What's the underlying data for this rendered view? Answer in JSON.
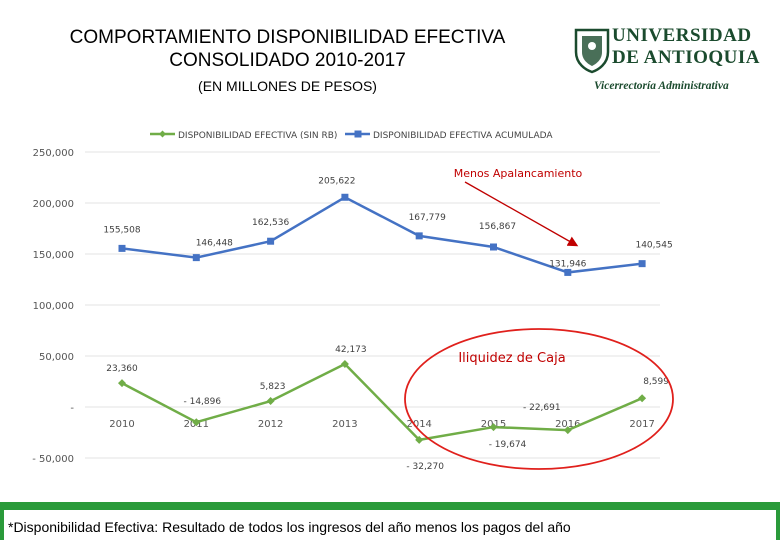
{
  "header": {
    "title": "COMPORTAMIENTO DISPONIBILIDAD EFECTIVA CONSOLIDADO 2010-2017",
    "subtitle": "(EN MILLONES DE PESOS)"
  },
  "logo": {
    "line1": "UNIVERSIDAD",
    "line2": "DE ANTIOQUIA",
    "line3": "Vicerrectoría Administrativa"
  },
  "footer": {
    "note": "*Disponibilidad Efectiva: Resultado de todos los ingresos del año menos los pagos del año"
  },
  "colors": {
    "series1": "#70ad47",
    "series2": "#4472c4",
    "annotation": "#c00000",
    "frame": "#2a9a3a"
  },
  "chart_data": {
    "type": "line",
    "categories": [
      "2010",
      "2011",
      "2012",
      "2013",
      "2014",
      "2015",
      "2016",
      "2017"
    ],
    "series": [
      {
        "name": "DISPONIBILIDAD EFECTIVA (SIN RB)",
        "values": [
          23360,
          -14896,
          5823,
          42173,
          -32270,
          -19674,
          -22691,
          8599
        ],
        "labels": [
          "23,360",
          "- 14,896",
          "5,823",
          "42,173",
          "- 32,270",
          "- 19,674",
          "- 22,691",
          "8,599"
        ]
      },
      {
        "name": "DISPONIBILIDAD EFECTIVA ACUMULADA",
        "values": [
          155508,
          146448,
          162536,
          205622,
          167779,
          156867,
          131946,
          140545
        ],
        "labels": [
          "155,508",
          "146,448",
          "162,536",
          "205,622",
          "167,779",
          "156,867",
          "131,946",
          "140,545"
        ]
      }
    ],
    "yticks": [
      250000,
      200000,
      150000,
      100000,
      50000,
      0,
      -50000
    ],
    "ytick_labels": [
      "250,000",
      "200,000",
      "150,000",
      "100,000",
      "50,000",
      "-",
      "- 50,000"
    ],
    "ylim": [
      -50000,
      250000
    ],
    "legend": "top",
    "annotations": [
      "Menos Apalancamiento",
      "Iliquidez de Caja"
    ]
  }
}
